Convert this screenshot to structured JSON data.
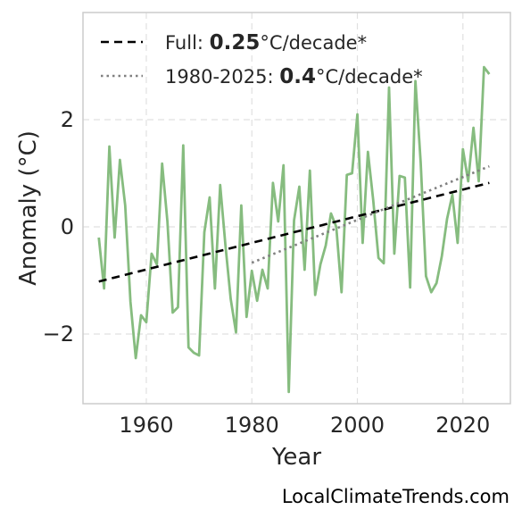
{
  "chart_data": {
    "type": "line",
    "title": "",
    "xlabel": "Year",
    "ylabel": "Anomaly (°C)",
    "xlim": [
      1948,
      2029
    ],
    "ylim": [
      -3.3,
      4.0
    ],
    "xticks": [
      1960,
      1980,
      2000,
      2020
    ],
    "yticks": [
      -2,
      0,
      2
    ],
    "ytick_labels": [
      "−2",
      "0",
      "2"
    ],
    "grid": true,
    "legend_position": "top-left",
    "series": [
      {
        "color": "#86bc7f",
        "x": [
          1951,
          1952,
          1953,
          1954,
          1955,
          1956,
          1957,
          1958,
          1959,
          1960,
          1961,
          1962,
          1963,
          1964,
          1965,
          1966,
          1967,
          1968,
          1969,
          1970,
          1971,
          1972,
          1973,
          1974,
          1975,
          1976,
          1977,
          1978,
          1979,
          1980,
          1981,
          1982,
          1983,
          1984,
          1985,
          1986,
          1987,
          1988,
          1989,
          1990,
          1991,
          1992,
          1993,
          1994,
          1995,
          1996,
          1997,
          1998,
          1999,
          2000,
          2001,
          2002,
          2003,
          2004,
          2005,
          2006,
          2007,
          2008,
          2009,
          2010,
          2011,
          2012,
          2013,
          2014,
          2015,
          2016,
          2017,
          2018,
          2019,
          2020,
          2021,
          2022,
          2023,
          2024,
          2025
        ],
        "values": [
          -0.2,
          -1.15,
          1.5,
          -0.2,
          1.25,
          0.4,
          -1.4,
          -2.45,
          -1.65,
          -1.78,
          -0.5,
          -0.7,
          1.18,
          0.1,
          -1.6,
          -1.5,
          1.52,
          -2.25,
          -2.35,
          -2.4,
          -0.1,
          0.55,
          -1.15,
          0.78,
          -0.35,
          -1.35,
          -1.97,
          0.4,
          -1.68,
          -0.82,
          -1.38,
          -0.8,
          -1.15,
          0.82,
          0.1,
          1.15,
          -3.08,
          0.12,
          0.75,
          -0.8,
          1.05,
          -1.27,
          -0.7,
          -0.35,
          0.25,
          0.0,
          -1.22,
          0.97,
          1.0,
          2.1,
          -0.3,
          1.4,
          0.5,
          -0.58,
          -0.68,
          2.6,
          -0.5,
          0.95,
          0.92,
          -1.13,
          2.72,
          1.2,
          -0.92,
          -1.22,
          -1.05,
          -0.55,
          0.15,
          0.6,
          -0.3,
          1.45,
          0.85,
          1.85,
          0.85,
          2.98,
          2.85
        ]
      },
      {
        "name_prefix": "Full: ",
        "rate": "0.25",
        "unit": "°C/decade*",
        "color": "#000000",
        "style": "dashed",
        "x": [
          1951,
          2025
        ],
        "values": [
          -1.02,
          0.82
        ]
      },
      {
        "name_prefix": "1980-2025: ",
        "rate": "0.4",
        "unit": "°C/decade*",
        "color": "#808080",
        "style": "dotted",
        "x": [
          1980,
          2025
        ],
        "values": [
          -0.67,
          1.13
        ]
      }
    ]
  },
  "watermark": "LocalClimateTrends.com"
}
